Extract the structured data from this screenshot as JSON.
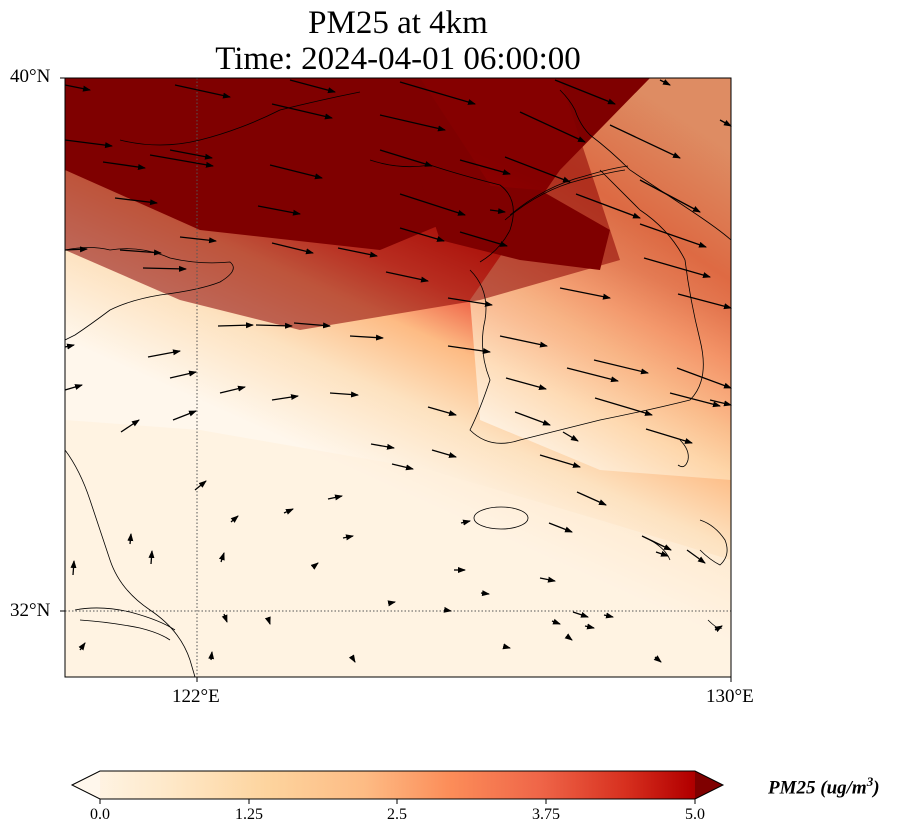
{
  "title": {
    "line1": "PM25 at 4km",
    "line2": "Time: 2024-04-01 06:00:00"
  },
  "map": {
    "lat_labels": [
      "40°N",
      "32°N"
    ],
    "lon_labels": [
      "122°E",
      "130°E"
    ],
    "extent": {
      "lon_min": 120.0,
      "lon_max": 130.0,
      "lat_min": 31.0,
      "lat_max": 40.0
    },
    "gridlines": {
      "lon": [
        122,
        130
      ],
      "lat": [
        32,
        40
      ],
      "style": "dotted"
    }
  },
  "colorbar": {
    "label": "PM25 (ug/m",
    "label_sup": "3",
    "label_end": ")",
    "ticks": [
      "0.0",
      "1.25",
      "2.5",
      "3.75",
      "5.0"
    ],
    "vmin": 0.0,
    "vmax": 5.0,
    "colormap": "OrRd",
    "extend": "both"
  },
  "colors": {
    "low": "#fff7ec",
    "mid": "#fc8d59",
    "high": "#7f0000"
  }
}
